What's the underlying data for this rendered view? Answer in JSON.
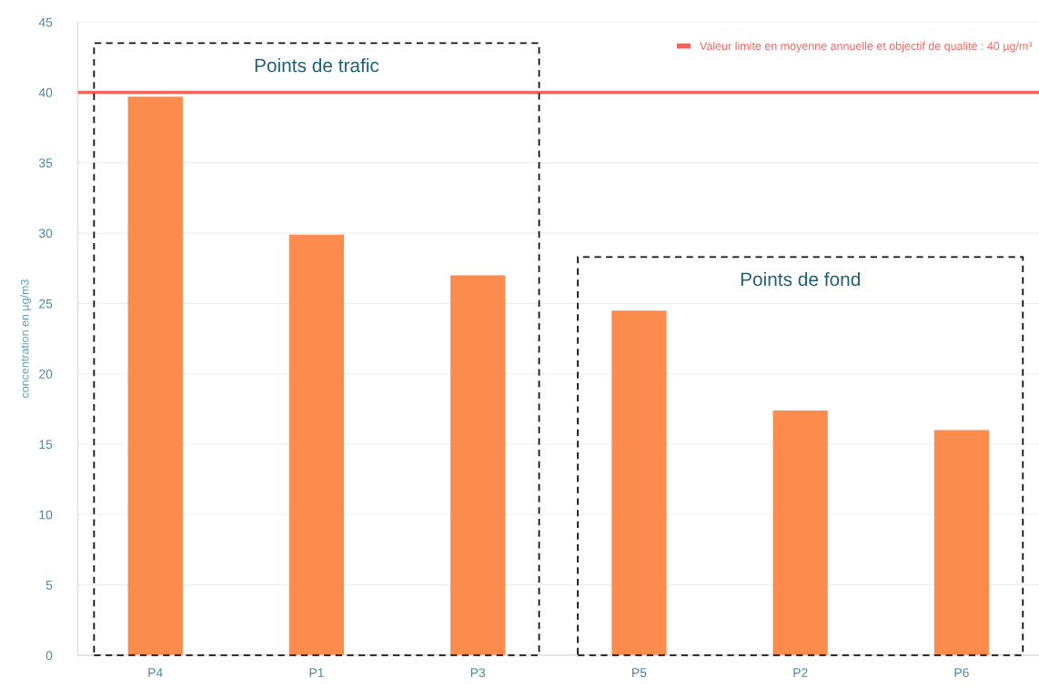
{
  "chart_data": {
    "type": "bar",
    "categories": [
      "P4",
      "P1",
      "P3",
      "P5",
      "P2",
      "P6"
    ],
    "values": [
      39.7,
      29.9,
      27.0,
      24.5,
      17.4,
      16.0
    ],
    "color": "#fb8c4e",
    "ylabel": "concentration en µg/m3",
    "ylim": [
      0,
      45
    ],
    "yticks": [
      0,
      5,
      10,
      15,
      20,
      25,
      30,
      35,
      40,
      45
    ],
    "grid": "y",
    "ref_lines": [
      {
        "axis": "y",
        "value": 40,
        "label": "Valeur limite en moyenne annuelle et objectif de qualité : 40 µg/m³",
        "color": "#f4645e"
      }
    ],
    "legend": "top right",
    "annotations": [
      "Points de trafic",
      "Points de fond"
    ]
  }
}
